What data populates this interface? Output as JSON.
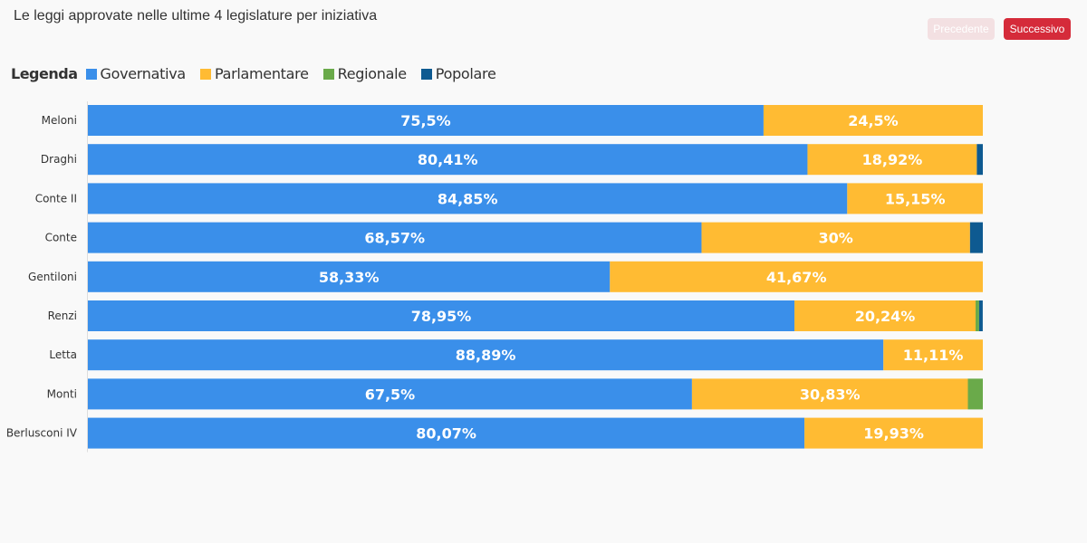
{
  "header": {
    "title": "Le leggi approvate nelle ultime 4 legislature per iniziativa",
    "prev_label": "Precedente",
    "next_label": "Successivo"
  },
  "legend": {
    "title": "Legenda"
  },
  "colors": {
    "governativa": "#3a8fea",
    "parlamentare": "#ffbb33",
    "regionale": "#6aaa4a",
    "popolare": "#0e5a91"
  },
  "chart_data": {
    "type": "bar",
    "orientation": "horizontal",
    "stacked": true,
    "title": "Le leggi approvate nelle ultime 4 legislature per iniziativa",
    "categories": [
      "Meloni",
      "Draghi",
      "Conte II",
      "Conte",
      "Gentiloni",
      "Renzi",
      "Letta",
      "Monti",
      "Berlusconi IV"
    ],
    "xlim": [
      0,
      100
    ],
    "series": [
      {
        "name": "Governativa",
        "color": "#3a8fea",
        "values": [
          75.5,
          80.41,
          84.85,
          68.57,
          58.33,
          78.95,
          88.89,
          67.5,
          80.07
        ],
        "labels": [
          "75,5%",
          "80,41%",
          "84,85%",
          "68,57%",
          "58,33%",
          "78,95%",
          "88,89%",
          "67,5%",
          "80,07%"
        ]
      },
      {
        "name": "Parlamentare",
        "color": "#ffbb33",
        "values": [
          24.5,
          18.92,
          15.15,
          30,
          41.67,
          20.24,
          11.11,
          30.83,
          19.93
        ],
        "labels": [
          "24,5%",
          "18,92%",
          "15,15%",
          "30%",
          "41,67%",
          "20,24%",
          "11,11%",
          "30,83%",
          "19,93%"
        ]
      },
      {
        "name": "Regionale",
        "color": "#6aaa4a",
        "values": [
          0,
          0,
          0,
          0,
          0,
          0.4,
          0,
          1.67,
          0
        ],
        "labels": [
          "",
          "",
          "",
          "",
          "",
          "",
          "",
          "",
          ""
        ]
      },
      {
        "name": "Popolare",
        "color": "#0e5a91",
        "values": [
          0,
          0.67,
          0,
          1.43,
          0,
          0.4,
          0,
          0,
          0
        ],
        "labels": [
          "",
          "",
          "",
          "",
          "",
          "",
          "",
          "",
          ""
        ]
      }
    ],
    "legend_position": "top-left",
    "grid": false
  }
}
